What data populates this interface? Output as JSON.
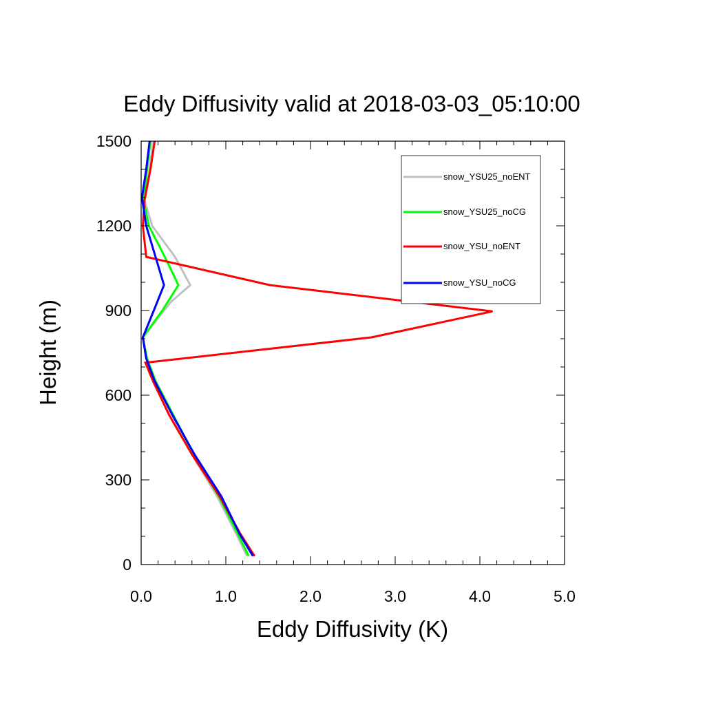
{
  "chart_data": {
    "type": "line",
    "title": "Eddy Diffusivity valid at 2018-03-03_05:10:00",
    "xlabel": "Eddy Diffusivity (K)",
    "ylabel": "Height (m)",
    "xlim": [
      0,
      5
    ],
    "ylim": [
      0,
      1500
    ],
    "xticks": [
      0,
      1,
      2,
      3,
      4,
      5
    ],
    "xtick_labels": [
      "0.0",
      "1.0",
      "2.0",
      "3.0",
      "4.0",
      "5.0"
    ],
    "yticks": [
      0,
      300,
      600,
      900,
      1200,
      1500
    ],
    "ytick_labels": [
      "0",
      "300",
      "600",
      "900",
      "1200",
      "1500"
    ],
    "legend_position": "top-right",
    "grid": false,
    "series": [
      {
        "name": "snow_YSU25_noENT",
        "color": "#c0c0c0",
        "points": [
          [
            1.25,
            30
          ],
          [
            1.12,
            110
          ],
          [
            0.9,
            240
          ],
          [
            0.6,
            390
          ],
          [
            0.36,
            530
          ],
          [
            0.16,
            650
          ],
          [
            0.06,
            730
          ],
          [
            0.02,
            805
          ],
          [
            0.35,
            930
          ],
          [
            0.58,
            990
          ],
          [
            0.4,
            1090
          ],
          [
            0.13,
            1200
          ],
          [
            0.04,
            1290
          ],
          [
            0.1,
            1400
          ],
          [
            0.14,
            1500
          ]
        ]
      },
      {
        "name": "snow_YSU25_noCG",
        "color": "#00ff00",
        "points": [
          [
            1.27,
            30
          ],
          [
            1.14,
            110
          ],
          [
            0.92,
            240
          ],
          [
            0.62,
            390
          ],
          [
            0.38,
            530
          ],
          [
            0.17,
            650
          ],
          [
            0.07,
            730
          ],
          [
            0.02,
            805
          ],
          [
            0.25,
            900
          ],
          [
            0.44,
            990
          ],
          [
            0.28,
            1090
          ],
          [
            0.09,
            1200
          ],
          [
            0.03,
            1290
          ],
          [
            0.07,
            1400
          ],
          [
            0.11,
            1500
          ]
        ]
      },
      {
        "name": "snow_YSU_noENT",
        "color": "#ff0000",
        "points": [
          [
            1.34,
            30
          ],
          [
            1.17,
            110
          ],
          [
            0.93,
            240
          ],
          [
            0.6,
            390
          ],
          [
            0.33,
            530
          ],
          [
            0.14,
            650
          ],
          [
            0.05,
            715
          ],
          [
            2.72,
            805
          ],
          [
            4.15,
            897
          ],
          [
            1.52,
            990
          ],
          [
            0.06,
            1090
          ],
          [
            0.02,
            1200
          ],
          [
            0.04,
            1290
          ],
          [
            0.11,
            1400
          ],
          [
            0.16,
            1500
          ]
        ]
      },
      {
        "name": "snow_YSU_noCG",
        "color": "#0000ff",
        "points": [
          [
            1.32,
            30
          ],
          [
            1.16,
            110
          ],
          [
            0.95,
            240
          ],
          [
            0.63,
            390
          ],
          [
            0.37,
            530
          ],
          [
            0.16,
            650
          ],
          [
            0.06,
            730
          ],
          [
            0.02,
            805
          ],
          [
            0.15,
            900
          ],
          [
            0.27,
            990
          ],
          [
            0.17,
            1090
          ],
          [
            0.06,
            1200
          ],
          [
            0.01,
            1300
          ],
          [
            0.06,
            1400
          ],
          [
            0.1,
            1500
          ]
        ]
      }
    ]
  }
}
